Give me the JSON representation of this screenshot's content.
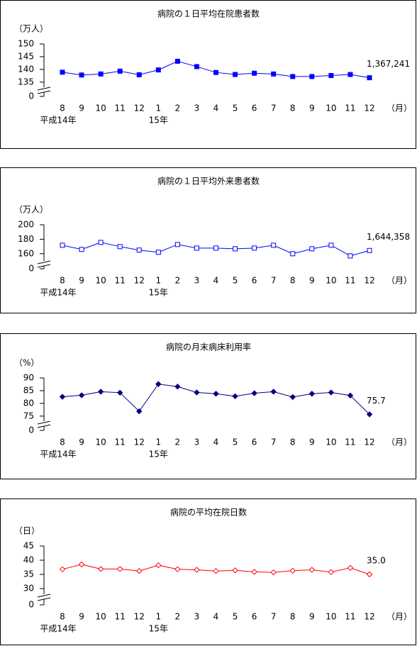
{
  "chart_data": [
    {
      "type": "line",
      "title": "病院の１日平均在院患者数",
      "y_label": "（万人）",
      "x_label": "（月）",
      "categories": [
        "8",
        "9",
        "10",
        "11",
        "12",
        "1",
        "2",
        "3",
        "4",
        "5",
        "6",
        "7",
        "8",
        "9",
        "10",
        "11",
        "12"
      ],
      "year_labels": [
        "平成14年",
        null,
        null,
        null,
        null,
        "15年",
        null,
        null,
        null,
        null,
        null,
        null,
        null,
        null,
        null,
        null,
        null
      ],
      "series": [
        {
          "color": "#0000ff",
          "marker": "square",
          "marker_filled": true,
          "values": [
            138.9,
            137.8,
            138.2,
            139.3,
            137.9,
            139.8,
            143.2,
            141.1,
            138.8,
            138.0,
            138.5,
            138.2,
            137.2,
            137.2,
            137.6,
            138.0,
            136.7241
          ],
          "value_labels": [
            null,
            null,
            null,
            null,
            null,
            null,
            null,
            null,
            null,
            null,
            null,
            null,
            null,
            null,
            null,
            null,
            "1,367,241"
          ]
        }
      ],
      "ylim": [
        133,
        150
      ],
      "yticks": [
        0,
        135,
        140,
        145,
        150
      ],
      "axis_break": true
    },
    {
      "type": "line",
      "title": "病院の１日平均外来患者数",
      "y_label": "（万人）",
      "x_label": "（月）",
      "categories": [
        "8",
        "9",
        "10",
        "11",
        "12",
        "1",
        "2",
        "3",
        "4",
        "5",
        "6",
        "7",
        "8",
        "9",
        "10",
        "11",
        "12"
      ],
      "year_labels": [
        "平成14年",
        null,
        null,
        null,
        null,
        "15年",
        null,
        null,
        null,
        null,
        null,
        null,
        null,
        null,
        null,
        null,
        null
      ],
      "series": [
        {
          "color": "#0000ff",
          "marker": "square",
          "marker_filled": false,
          "values": [
            171.7,
            165.9,
            175.6,
            169.8,
            165.0,
            162.0,
            172.7,
            167.8,
            167.8,
            166.8,
            167.8,
            171.7,
            160.0,
            166.8,
            171.7,
            157.0,
            164.4358
          ],
          "value_labels": [
            null,
            null,
            null,
            null,
            null,
            null,
            null,
            null,
            null,
            null,
            null,
            null,
            null,
            null,
            null,
            null,
            "1,644,358"
          ]
        }
      ],
      "ylim": [
        150,
        200
      ],
      "yticks": [
        0,
        160,
        180,
        200
      ],
      "axis_break": true
    },
    {
      "type": "line",
      "title": "病院の月末病床利用率",
      "y_label": "（%）",
      "x_label": "（月）",
      "categories": [
        "8",
        "9",
        "10",
        "11",
        "12",
        "1",
        "2",
        "3",
        "4",
        "5",
        "6",
        "7",
        "8",
        "9",
        "10",
        "11",
        "12"
      ],
      "year_labels": [
        "平成14年",
        null,
        null,
        null,
        null,
        "15年",
        null,
        null,
        null,
        null,
        null,
        null,
        null,
        null,
        null,
        null,
        null
      ],
      "series": [
        {
          "color": "#000080",
          "marker": "diamond",
          "marker_filled": true,
          "values": [
            82.6,
            83.2,
            84.6,
            84.2,
            76.9,
            87.6,
            86.6,
            84.3,
            83.8,
            82.8,
            84.0,
            84.6,
            82.5,
            83.8,
            84.3,
            83.1,
            75.7
          ],
          "value_labels": [
            null,
            null,
            null,
            null,
            null,
            null,
            null,
            null,
            null,
            null,
            null,
            null,
            null,
            null,
            null,
            null,
            "75.7"
          ]
        }
      ],
      "ylim": [
        73,
        90
      ],
      "yticks": [
        0,
        75,
        80,
        85,
        90
      ],
      "axis_break": true
    },
    {
      "type": "line",
      "title": "病院の平均在院日数",
      "y_label": "（日）",
      "x_label": "（月）",
      "categories": [
        "8",
        "9",
        "10",
        "11",
        "12",
        "1",
        "2",
        "3",
        "4",
        "5",
        "6",
        "7",
        "8",
        "9",
        "10",
        "11",
        "12"
      ],
      "year_labels": [
        "平成14年",
        null,
        null,
        null,
        null,
        "15年",
        null,
        null,
        null,
        null,
        null,
        null,
        null,
        null,
        null,
        null,
        null
      ],
      "series": [
        {
          "color": "#ff0000",
          "marker": "diamond",
          "marker_filled": false,
          "values": [
            36.8,
            38.5,
            36.9,
            36.9,
            36.2,
            38.2,
            36.8,
            36.6,
            36.2,
            36.4,
            35.9,
            35.7,
            36.3,
            36.6,
            35.8,
            37.3,
            35.0
          ],
          "value_labels": [
            null,
            null,
            null,
            null,
            null,
            null,
            null,
            null,
            null,
            null,
            null,
            null,
            null,
            null,
            null,
            null,
            "35.0"
          ]
        }
      ],
      "ylim": [
        28,
        45
      ],
      "yticks": [
        0,
        30,
        35,
        40,
        45
      ],
      "axis_break": true
    }
  ]
}
